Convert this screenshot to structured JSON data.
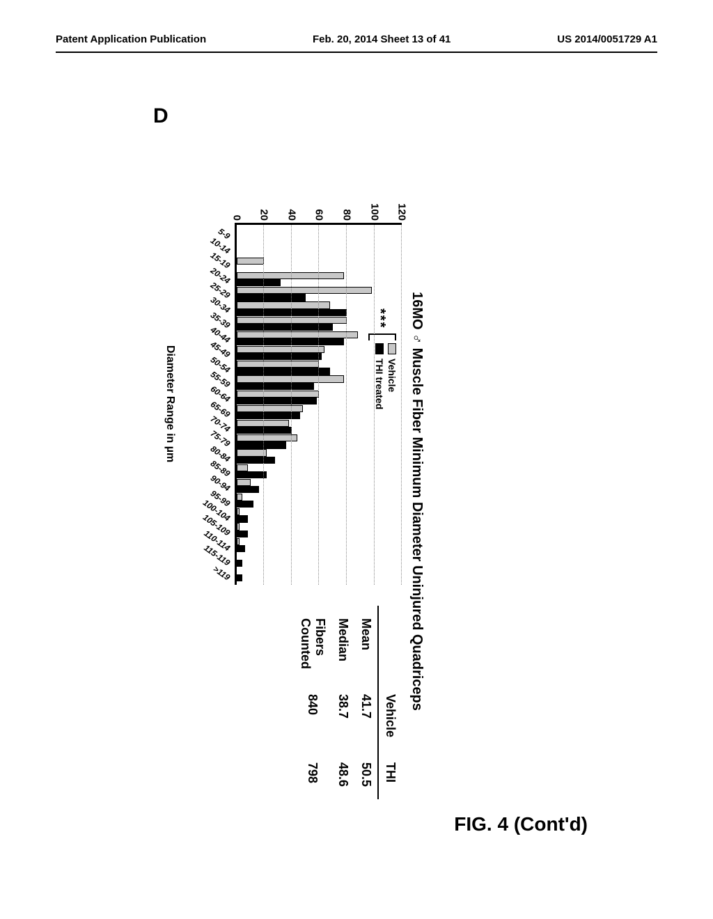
{
  "header": {
    "left": "Patent Application Publication",
    "center": "Feb. 20, 2014  Sheet 13 of 41",
    "right": "US 2014/0051729 A1"
  },
  "panel_label": "D",
  "figure_caption": "FIG. 4 (Cont'd)",
  "chart": {
    "type": "bar",
    "title": "16MO ♂ Muscle Fiber Minimum Diameter Uninjured Quadriceps",
    "xlabel": "Diameter Range in µm",
    "significance": "***",
    "legend": [
      {
        "label": "Vehicle",
        "color": "#c8c8c8"
      },
      {
        "label": "THI treated",
        "color": "#000000"
      }
    ],
    "ylim": [
      0,
      120
    ],
    "yticks": [
      0,
      20,
      40,
      60,
      80,
      100,
      120
    ],
    "grid_color": "#888888",
    "background_color": "#ffffff",
    "categories": [
      "5-9",
      "10-14",
      "15-19",
      "20-24",
      "25-29",
      "30-34",
      "35-39",
      "40-44",
      "45-49",
      "50-54",
      "55-59",
      "60-64",
      "65-69",
      "70-74",
      "75-79",
      "80-84",
      "85-89",
      "90-94",
      "95-99",
      "100-104",
      "105-109",
      "110-114",
      "115-119",
      ">119"
    ],
    "series": [
      {
        "name": "Vehicle",
        "color": "#c8c8c8",
        "values": [
          0,
          0,
          20,
          78,
          98,
          68,
          80,
          88,
          64,
          60,
          78,
          60,
          48,
          38,
          44,
          22,
          8,
          10,
          4,
          2,
          2,
          2,
          0,
          0
        ]
      },
      {
        "name": "THI treated",
        "color": "#000000",
        "values": [
          0,
          0,
          0,
          32,
          50,
          80,
          70,
          78,
          62,
          68,
          56,
          58,
          46,
          40,
          36,
          28,
          22,
          16,
          12,
          8,
          8,
          6,
          4,
          4
        ]
      }
    ]
  },
  "stats": {
    "columns": [
      "",
      "Vehicle",
      "THI"
    ],
    "rows": [
      [
        "Mean",
        "41.7",
        "50.5"
      ],
      [
        "Median",
        "38.7",
        "48.6"
      ],
      [
        "Fibers Counted",
        "840",
        "798"
      ]
    ]
  }
}
